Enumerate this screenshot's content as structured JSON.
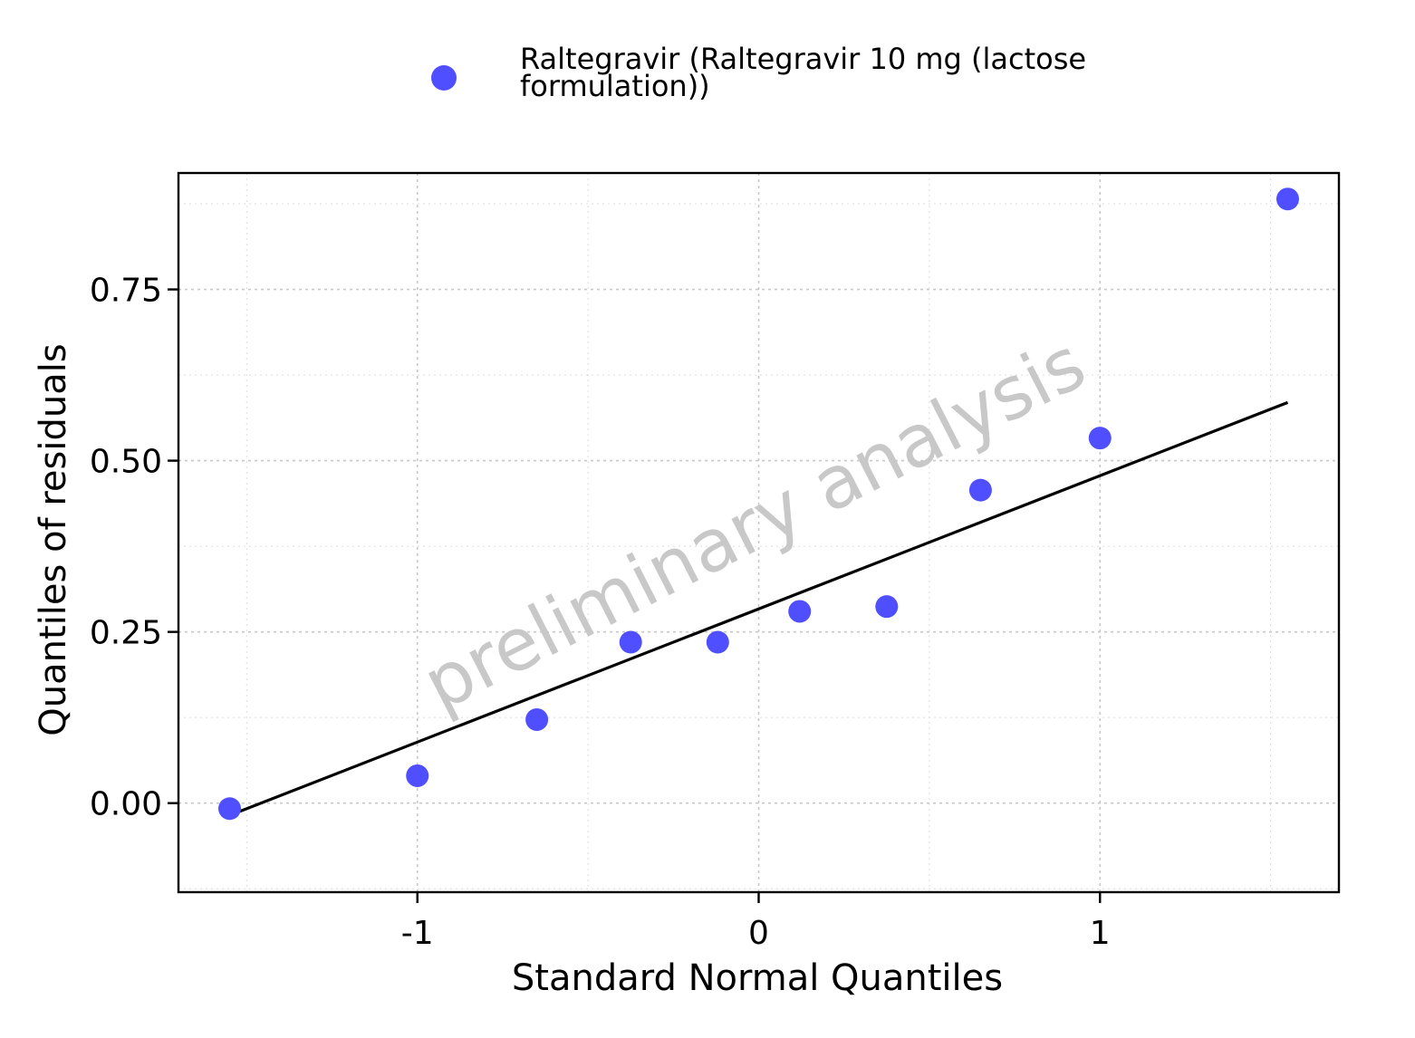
{
  "chart_data": {
    "type": "scatter",
    "title": "",
    "xlabel": "Standard Normal Quantiles",
    "ylabel": "Quantiles of residuals",
    "xlim": [
      -1.7,
      1.7
    ],
    "ylim": [
      -0.13,
      0.92
    ],
    "x_ticks": [
      -1,
      0,
      1
    ],
    "x_tick_labels": [
      "-1",
      "0",
      "1"
    ],
    "y_ticks": [
      0,
      0.25,
      0.5,
      0.75
    ],
    "y_tick_labels": [
      "0.00",
      "0.25",
      "0.50",
      "0.75"
    ],
    "grid": true,
    "legend": {
      "position": "top"
    },
    "watermark": "preliminary analysis",
    "series": [
      {
        "name": "Raltegravir (Raltegravir 10 mg (lactose formulation))",
        "color": "#4f4fff",
        "points": [
          {
            "x": -1.55,
            "y": -0.008
          },
          {
            "x": -1.0,
            "y": 0.04
          },
          {
            "x": -0.65,
            "y": 0.122
          },
          {
            "x": -0.375,
            "y": 0.235
          },
          {
            "x": -0.12,
            "y": 0.235
          },
          {
            "x": 0.12,
            "y": 0.28
          },
          {
            "x": 0.375,
            "y": 0.287
          },
          {
            "x": 0.65,
            "y": 0.457
          },
          {
            "x": 1.0,
            "y": 0.533
          },
          {
            "x": 1.55,
            "y": 0.882
          }
        ]
      }
    ],
    "reference_line": {
      "color": "#000000",
      "from": {
        "x": -1.52,
        "y": -0.012
      },
      "to": {
        "x": 1.55,
        "y": 0.585
      }
    }
  }
}
